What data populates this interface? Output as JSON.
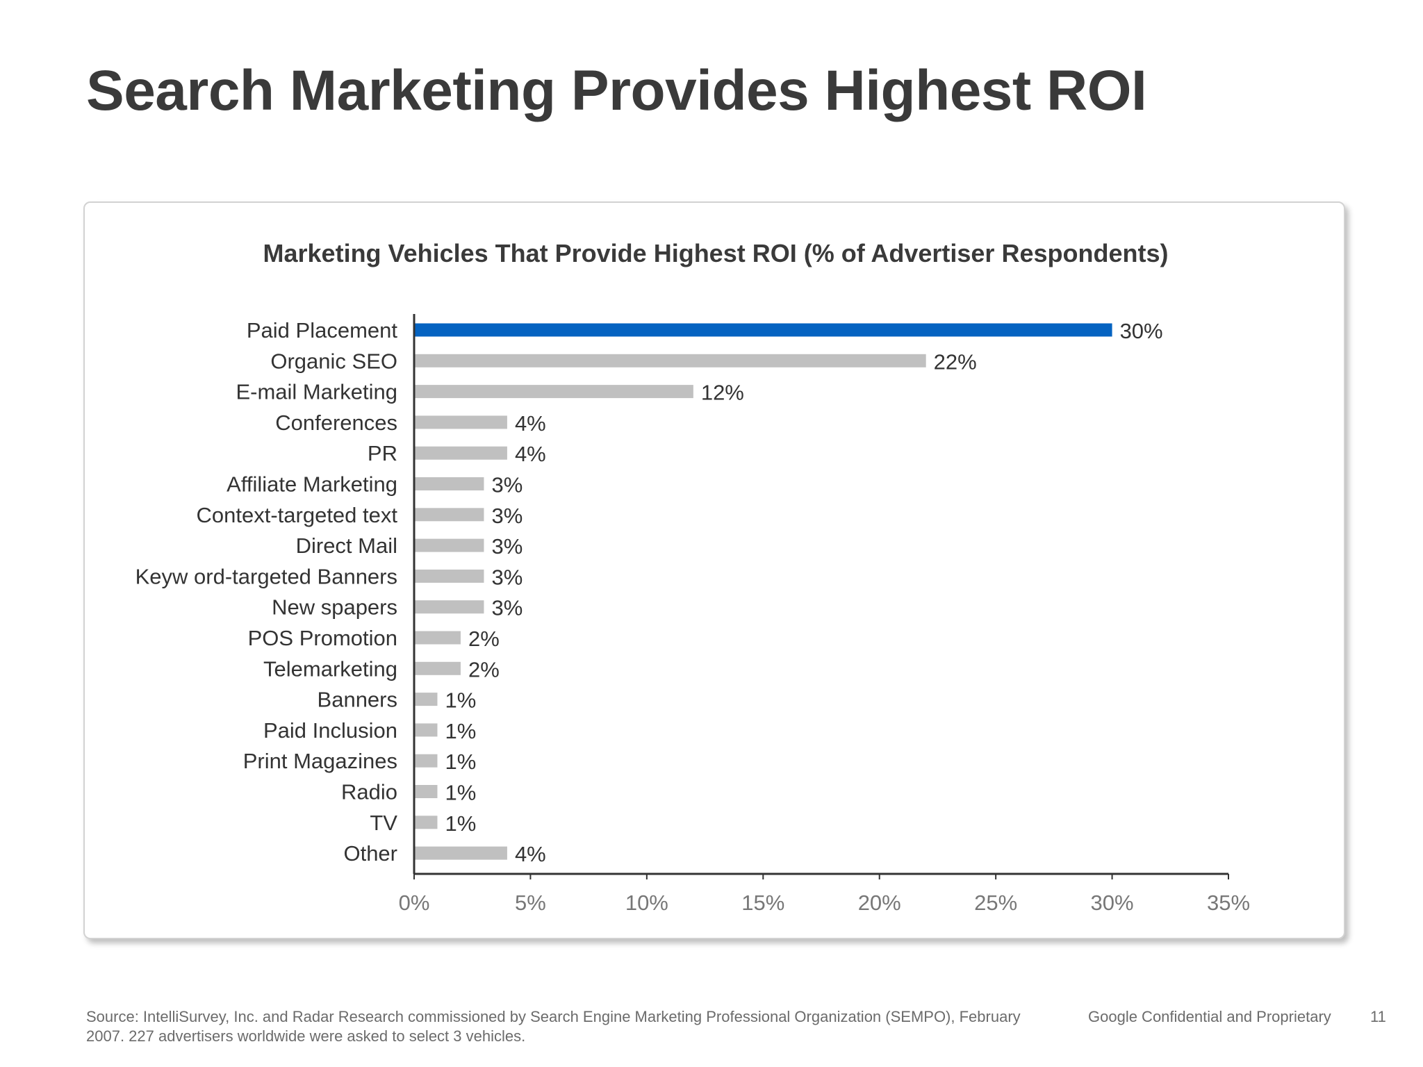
{
  "slide": {
    "title": "Search Marketing Provides Highest ROI"
  },
  "chart_data": {
    "type": "bar",
    "orientation": "horizontal",
    "title": "Marketing Vehicles That Provide Highest ROI (% of Advertiser Respondents)",
    "xlabel": "",
    "ylabel": "",
    "categories": [
      "Paid Placement",
      "Organic SEO",
      "E-mail Marketing",
      "Conferences",
      "PR",
      "Affiliate Marketing",
      "Context-targeted text",
      "Direct Mail",
      "Keyw ord-targeted Banners",
      "New spapers",
      "POS Promotion",
      "Telemarketing",
      "Banners",
      "Paid Inclusion",
      "Print Magazines",
      "Radio",
      "TV",
      "Other"
    ],
    "values": [
      30,
      22,
      12,
      4,
      4,
      3,
      3,
      3,
      3,
      3,
      2,
      2,
      1,
      1,
      1,
      1,
      1,
      4
    ],
    "value_labels": [
      "30%",
      "22%",
      "12%",
      "4%",
      "4%",
      "3%",
      "3%",
      "3%",
      "3%",
      "3%",
      "2%",
      "2%",
      "1%",
      "1%",
      "1%",
      "1%",
      "1%",
      "4%"
    ],
    "xlim": [
      0,
      35
    ],
    "x_ticks": [
      0,
      5,
      10,
      15,
      20,
      25,
      30,
      35
    ],
    "x_tick_labels": [
      "0%",
      "5%",
      "10%",
      "15%",
      "20%",
      "25%",
      "30%",
      "35%"
    ],
    "grid": false,
    "legend": "none",
    "highlight_index": 0,
    "colors": {
      "highlight": "#0563c1",
      "bar": "#c0c0c0",
      "axis": "#333333",
      "tick_label": "#777777",
      "label": "#333333"
    }
  },
  "footer": {
    "source": "Source: IntelliSurvey, Inc. and Radar Research commissioned by Search Engine Marketing Professional Organization (SEMPO), February 2007. 227 advertisers worldwide were asked to select 3 vehicles.",
    "confidential": "Google Confidential and Proprietary",
    "page_number": "11"
  }
}
